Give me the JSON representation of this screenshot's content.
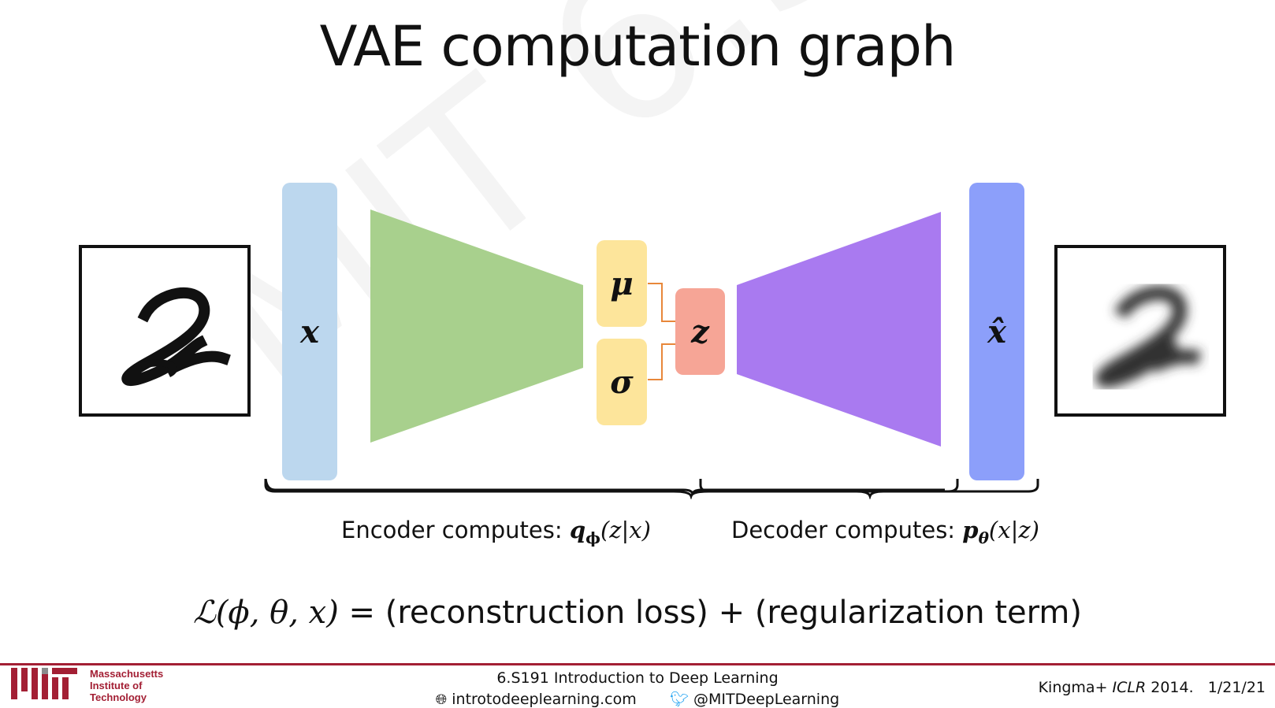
{
  "title": "VAE computation graph",
  "watermark": "MIT 6.S191",
  "nodes": {
    "x": "x",
    "mu": "μ",
    "sigma": "σ",
    "z": "z",
    "xhat": "x̂"
  },
  "encoder_label": {
    "text": "Encoder computes: ",
    "math": "q",
    "sub": "ϕ",
    "args": "(z|x)"
  },
  "decoder_label": {
    "text": "Decoder computes: ",
    "math": "p",
    "sub": "θ",
    "args": "(x|z)"
  },
  "loss": {
    "lhs": "ℒ(ϕ, θ, x)",
    "rhs": " = (reconstruction loss) + (regularization term)"
  },
  "footer": {
    "course": "6.S191 Introduction to Deep Learning",
    "website": "introtodeeplearning.com",
    "twitter": "@MITDeepLearning",
    "citation_author": "Kingma+ ",
    "citation_venue": "ICLR",
    "citation_year_date": " 2014.   1/21/21",
    "mit_line1": "Massachusetts",
    "mit_line2": "Institute of",
    "mit_line3": "Technology"
  },
  "colors": {
    "x_block": "#bcd7ee",
    "encoder": "#a8d08d",
    "mu_sigma": "#fde59b",
    "z_block": "#f6a596",
    "decoder": "#a97af0",
    "xhat_block": "#8c9ffa",
    "arrow": "#e8873a",
    "mit_red": "#a31f34"
  }
}
